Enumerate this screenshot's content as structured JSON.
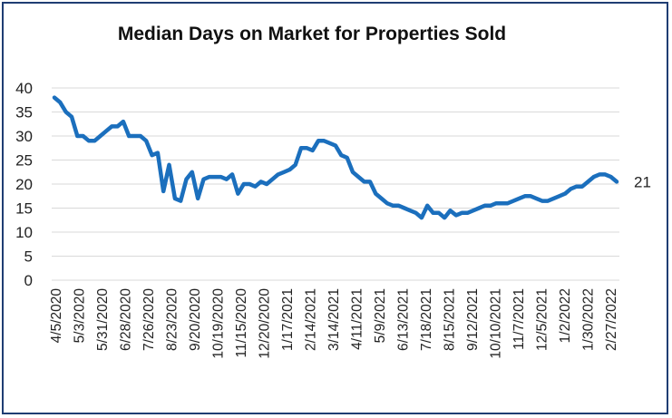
{
  "chart_data": {
    "type": "line",
    "title": "Median Days on Market for Properties Sold",
    "xlabel": "",
    "ylabel": "",
    "ylim": [
      0,
      40
    ],
    "yticks": [
      0,
      5,
      10,
      15,
      20,
      25,
      30,
      35,
      40
    ],
    "grid": true,
    "legend": "none",
    "colors": {
      "line": "#1b6fbd",
      "grid": "#d9d9d9",
      "border": "#1f3d73"
    },
    "x_tick_labels": [
      "4/5/2020",
      "5/3/2020",
      "5/31/2020",
      "6/28/2020",
      "7/26/2020",
      "8/23/2020",
      "9/20/2020",
      "10/19/2020",
      "11/15/2020",
      "12/20/2020",
      "1/17/2021",
      "2/14/2021",
      "3/14/2021",
      "4/11/2021",
      "5/9/2021",
      "6/13/2021",
      "7/18/2021",
      "8/15/2021",
      "9/12/2021",
      "10/10/2021",
      "11/7/2021",
      "12/5/2021",
      "1/2/2022",
      "1/30/2022",
      "2/27/2022"
    ],
    "end_label": "21",
    "series": [
      {
        "values": [
          38,
          37,
          35,
          34,
          30,
          30,
          29,
          29,
          30,
          31,
          32,
          32,
          33,
          30,
          30,
          30,
          29,
          26,
          26.5,
          18.5,
          24,
          17,
          16.5,
          21,
          22.5,
          17,
          21,
          21.5,
          21.5,
          21.5,
          21,
          22,
          18,
          20,
          20,
          19.5,
          20.5,
          20,
          21,
          22,
          22.5,
          23,
          24,
          27.5,
          27.5,
          27,
          29,
          29,
          28.5,
          28,
          26,
          25.5,
          22.5,
          21.5,
          20.5,
          20.5,
          18,
          17,
          16,
          15.5,
          15.5,
          15,
          14.5,
          14,
          13,
          15.5,
          14,
          14,
          13,
          14.5,
          13.5,
          14,
          14,
          14.5,
          15,
          15.5,
          15.5,
          16,
          16,
          16,
          16.5,
          17,
          17.5,
          17.5,
          17,
          16.5,
          16.5,
          17,
          17.5,
          18,
          19,
          19.5,
          19.5,
          20.5,
          21.5,
          22,
          22,
          21.5,
          20.5
        ]
      }
    ]
  }
}
